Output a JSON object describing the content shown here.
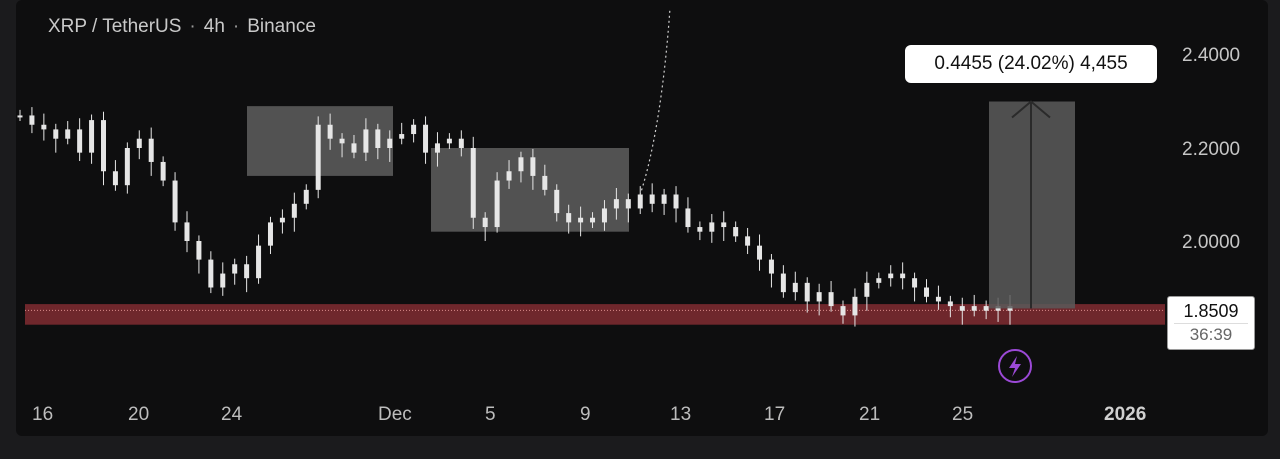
{
  "header": {
    "symbol": "XRP / TetherUS",
    "interval": "4h",
    "exchange": "Binance",
    "separator": "·"
  },
  "tooltip": {
    "text": "0.4455 (24.02%) 4,455"
  },
  "price_tag": {
    "price": "1.8509",
    "countdown": "36:39"
  },
  "colors": {
    "candle": "#e6e6e6",
    "support_band": "#7a2a30",
    "box_fill": "#6a6a6a",
    "background": "#0e0e0f",
    "event_icon": "#9b49d6"
  },
  "icons": {
    "event_marker": "lightning-icon"
  },
  "chart_data": {
    "type": "candlestick",
    "title": "",
    "xlabel": "",
    "ylabel": "",
    "y_ticks": [
      "2.4000",
      "2.2000",
      "2.0000"
    ],
    "x_ticks": [
      "16",
      "20",
      "24",
      "Dec",
      "5",
      "9",
      "13",
      "17",
      "21",
      "25",
      "2026"
    ],
    "ylim": [
      1.72,
      2.44
    ],
    "grid": false,
    "current_price": 1.8509,
    "support_band": [
      1.82,
      1.86
    ],
    "range_boxes": [
      {
        "from": "Nov 25",
        "to": "Dec 1",
        "high": 2.29,
        "low": 2.14
      },
      {
        "from": "Dec 2",
        "to": "Dec 10",
        "high": 2.2,
        "low": 2.02
      }
    ],
    "long_position": {
      "from": "Dec 27",
      "to": "Dec 31",
      "entry": 1.855,
      "target": 2.3,
      "change": 0.4455,
      "change_pct": 24.02,
      "ticks": 4455
    },
    "close_series": [
      2.27,
      2.25,
      2.24,
      2.22,
      2.24,
      2.19,
      2.26,
      2.15,
      2.12,
      2.2,
      2.22,
      2.17,
      2.13,
      2.04,
      2.0,
      1.96,
      1.9,
      1.93,
      1.95,
      1.92,
      1.99,
      2.04,
      2.05,
      2.08,
      2.11,
      2.25,
      2.22,
      2.21,
      2.19,
      2.24,
      2.2,
      2.22,
      2.23,
      2.25,
      2.19,
      2.21,
      2.22,
      2.2,
      2.05,
      2.03,
      2.13,
      2.15,
      2.18,
      2.14,
      2.11,
      2.06,
      2.04,
      2.05,
      2.04,
      2.07,
      2.09,
      2.07,
      2.1,
      2.08,
      2.1,
      2.07,
      2.03,
      2.02,
      2.04,
      2.03,
      2.01,
      1.99,
      1.96,
      1.93,
      1.89,
      1.91,
      1.87,
      1.89,
      1.86,
      1.84,
      1.88,
      1.91,
      1.92,
      1.93,
      1.92,
      1.9,
      1.88,
      1.87,
      1.86,
      1.85,
      1.86,
      1.85,
      1.86,
      1.85
    ]
  }
}
